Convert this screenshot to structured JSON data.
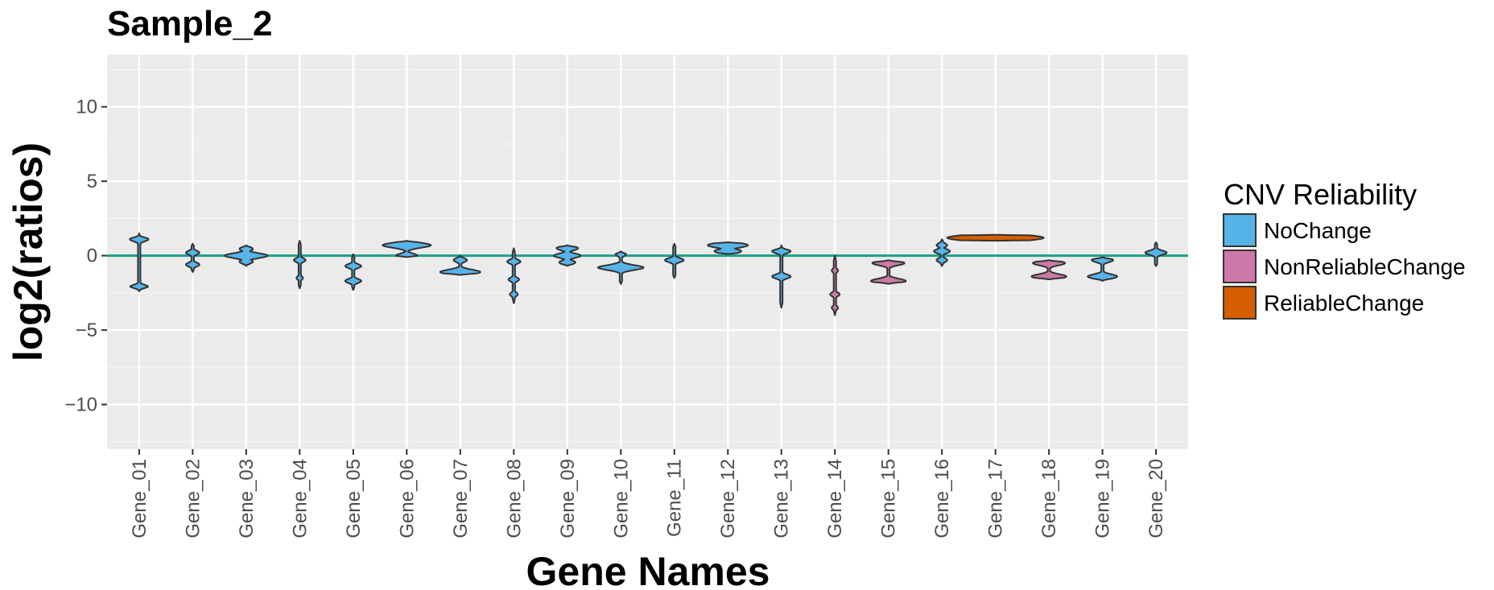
{
  "chart_data": {
    "type": "violin",
    "title": "Sample_2",
    "xlabel": "Gene Names",
    "ylabel": "log2(ratios)",
    "ylim": [
      -13,
      13.5
    ],
    "yticks": [
      -10,
      -5,
      0,
      5,
      10
    ],
    "ytick_labels": [
      "−10",
      "−5",
      "0",
      "5",
      "10"
    ],
    "reference_line": {
      "y": 0,
      "color": "#1f9e89"
    },
    "grid": true,
    "legend": {
      "title": "CNV Reliability",
      "position": "right",
      "entries": [
        {
          "label": "NoChange",
          "color": "#56b4e9"
        },
        {
          "label": "NonReliableChange",
          "color": "#cc79a7"
        },
        {
          "label": "ReliableChange",
          "color": "#d55e00"
        }
      ]
    },
    "categories": [
      "Gene_01",
      "Gene_02",
      "Gene_03",
      "Gene_04",
      "Gene_05",
      "Gene_06",
      "Gene_07",
      "Gene_08",
      "Gene_09",
      "Gene_10",
      "Gene_11",
      "Gene_12",
      "Gene_13",
      "Gene_14",
      "Gene_15",
      "Gene_16",
      "Gene_17",
      "Gene_18",
      "Gene_19",
      "Gene_20"
    ],
    "violins": [
      {
        "gene": "Gene_01",
        "group": "NoChange",
        "ymin": -2.4,
        "ymax": 1.5,
        "modes": [
          [
            1.1,
            0.35
          ],
          [
            -2.1,
            0.35
          ]
        ]
      },
      {
        "gene": "Gene_02",
        "group": "NoChange",
        "ymin": -1.1,
        "ymax": 0.8,
        "modes": [
          [
            0.2,
            0.25
          ],
          [
            -0.6,
            0.25
          ]
        ]
      },
      {
        "gene": "Gene_03",
        "group": "NoChange",
        "ymin": -0.7,
        "ymax": 0.7,
        "modes": [
          [
            0.0,
            0.8
          ],
          [
            0.45,
            0.25
          ],
          [
            -0.4,
            0.25
          ]
        ]
      },
      {
        "gene": "Gene_04",
        "group": "NoChange",
        "ymin": -2.2,
        "ymax": 1.0,
        "modes": [
          [
            -0.3,
            0.22
          ],
          [
            -1.5,
            0.12
          ]
        ]
      },
      {
        "gene": "Gene_05",
        "group": "NoChange",
        "ymin": -2.3,
        "ymax": 0.1,
        "modes": [
          [
            -0.7,
            0.3
          ],
          [
            -1.7,
            0.3
          ]
        ]
      },
      {
        "gene": "Gene_06",
        "group": "NoChange",
        "ymin": -0.1,
        "ymax": 1.0,
        "modes": [
          [
            0.7,
            0.9
          ],
          [
            0.0,
            0.4
          ]
        ]
      },
      {
        "gene": "Gene_07",
        "group": "NoChange",
        "ymin": -1.3,
        "ymax": 0.0,
        "modes": [
          [
            -1.1,
            0.75
          ],
          [
            -0.3,
            0.25
          ]
        ]
      },
      {
        "gene": "Gene_08",
        "group": "NoChange",
        "ymin": -3.2,
        "ymax": 0.5,
        "modes": [
          [
            -0.4,
            0.25
          ],
          [
            -1.6,
            0.2
          ],
          [
            -2.6,
            0.15
          ]
        ]
      },
      {
        "gene": "Gene_09",
        "group": "NoChange",
        "ymin": -0.7,
        "ymax": 0.7,
        "modes": [
          [
            0.5,
            0.4
          ],
          [
            0.0,
            0.5
          ],
          [
            -0.45,
            0.3
          ]
        ]
      },
      {
        "gene": "Gene_10",
        "group": "NoChange",
        "ymin": -1.9,
        "ymax": 0.3,
        "modes": [
          [
            -0.8,
            0.85
          ],
          [
            0.1,
            0.2
          ]
        ]
      },
      {
        "gene": "Gene_11",
        "group": "NoChange",
        "ymin": -1.5,
        "ymax": 0.8,
        "modes": [
          [
            -0.3,
            0.35
          ]
        ]
      },
      {
        "gene": "Gene_12",
        "group": "NoChange",
        "ymin": 0.1,
        "ymax": 0.9,
        "modes": [
          [
            0.7,
            0.75
          ],
          [
            0.3,
            0.5
          ]
        ]
      },
      {
        "gene": "Gene_13",
        "group": "NoChange",
        "ymin": -3.5,
        "ymax": 0.7,
        "modes": [
          [
            0.3,
            0.35
          ],
          [
            -1.4,
            0.35
          ]
        ]
      },
      {
        "gene": "Gene_14",
        "group": "NonReliableChange",
        "ymin": -4.0,
        "ymax": 0.0,
        "modes": [
          [
            -1.0,
            0.12
          ],
          [
            -2.6,
            0.18
          ],
          [
            -3.5,
            0.12
          ]
        ]
      },
      {
        "gene": "Gene_15",
        "group": "NonReliableChange",
        "ymin": -1.9,
        "ymax": -0.3,
        "modes": [
          [
            -0.5,
            0.6
          ],
          [
            -1.7,
            0.65
          ]
        ]
      },
      {
        "gene": "Gene_16",
        "group": "NoChange",
        "ymin": -0.7,
        "ymax": 1.1,
        "modes": [
          [
            0.3,
            0.3
          ],
          [
            0.7,
            0.2
          ],
          [
            -0.3,
            0.2
          ]
        ]
      },
      {
        "gene": "Gene_17",
        "group": "ReliableChange",
        "ymin": 1.0,
        "ymax": 1.4,
        "modes": [
          [
            1.2,
            1.8
          ]
        ]
      },
      {
        "gene": "Gene_18",
        "group": "NonReliableChange",
        "ymin": -1.6,
        "ymax": -0.3,
        "modes": [
          [
            -0.5,
            0.6
          ],
          [
            -1.4,
            0.65
          ]
        ]
      },
      {
        "gene": "Gene_19",
        "group": "NoChange",
        "ymin": -1.7,
        "ymax": -0.1,
        "modes": [
          [
            -0.3,
            0.4
          ],
          [
            -1.4,
            0.55
          ]
        ]
      },
      {
        "gene": "Gene_20",
        "group": "NoChange",
        "ymin": -0.7,
        "ymax": 0.9,
        "modes": [
          [
            0.2,
            0.4
          ]
        ]
      }
    ]
  }
}
